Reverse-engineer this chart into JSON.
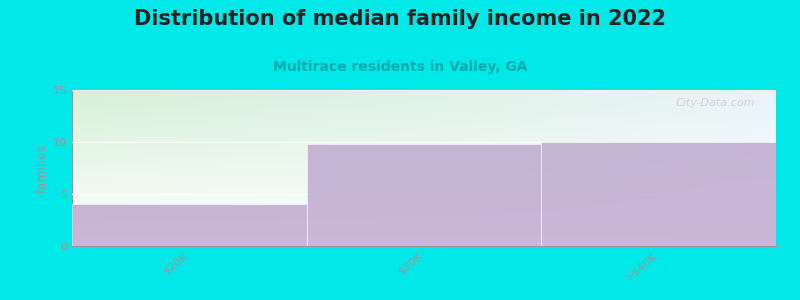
{
  "title": "Distribution of median family income in 2022",
  "subtitle": "Multirace residents in Valley, GA",
  "categories": [
    "$20K",
    "$30K",
    ">$40K"
  ],
  "values": [
    4,
    9.8,
    10
  ],
  "ylim": [
    0,
    15
  ],
  "yticks": [
    0,
    5,
    10,
    15
  ],
  "ylabel": "families",
  "bar_color": "#b99ecb",
  "bar_alpha": 0.75,
  "bg_color": "#00e8e8",
  "plot_bg_color_top_left": "#d6f0d6",
  "plot_bg_color_top_right": "#e8f4f8",
  "plot_bg_color_bottom": "#ffffff",
  "title_color": "#222222",
  "subtitle_color": "#00aaaa",
  "axis_color": "#999999",
  "watermark": "City-Data.com",
  "title_fontsize": 15,
  "subtitle_fontsize": 10,
  "ylabel_fontsize": 9,
  "tick_fontsize": 8,
  "tick_rotation": 40
}
